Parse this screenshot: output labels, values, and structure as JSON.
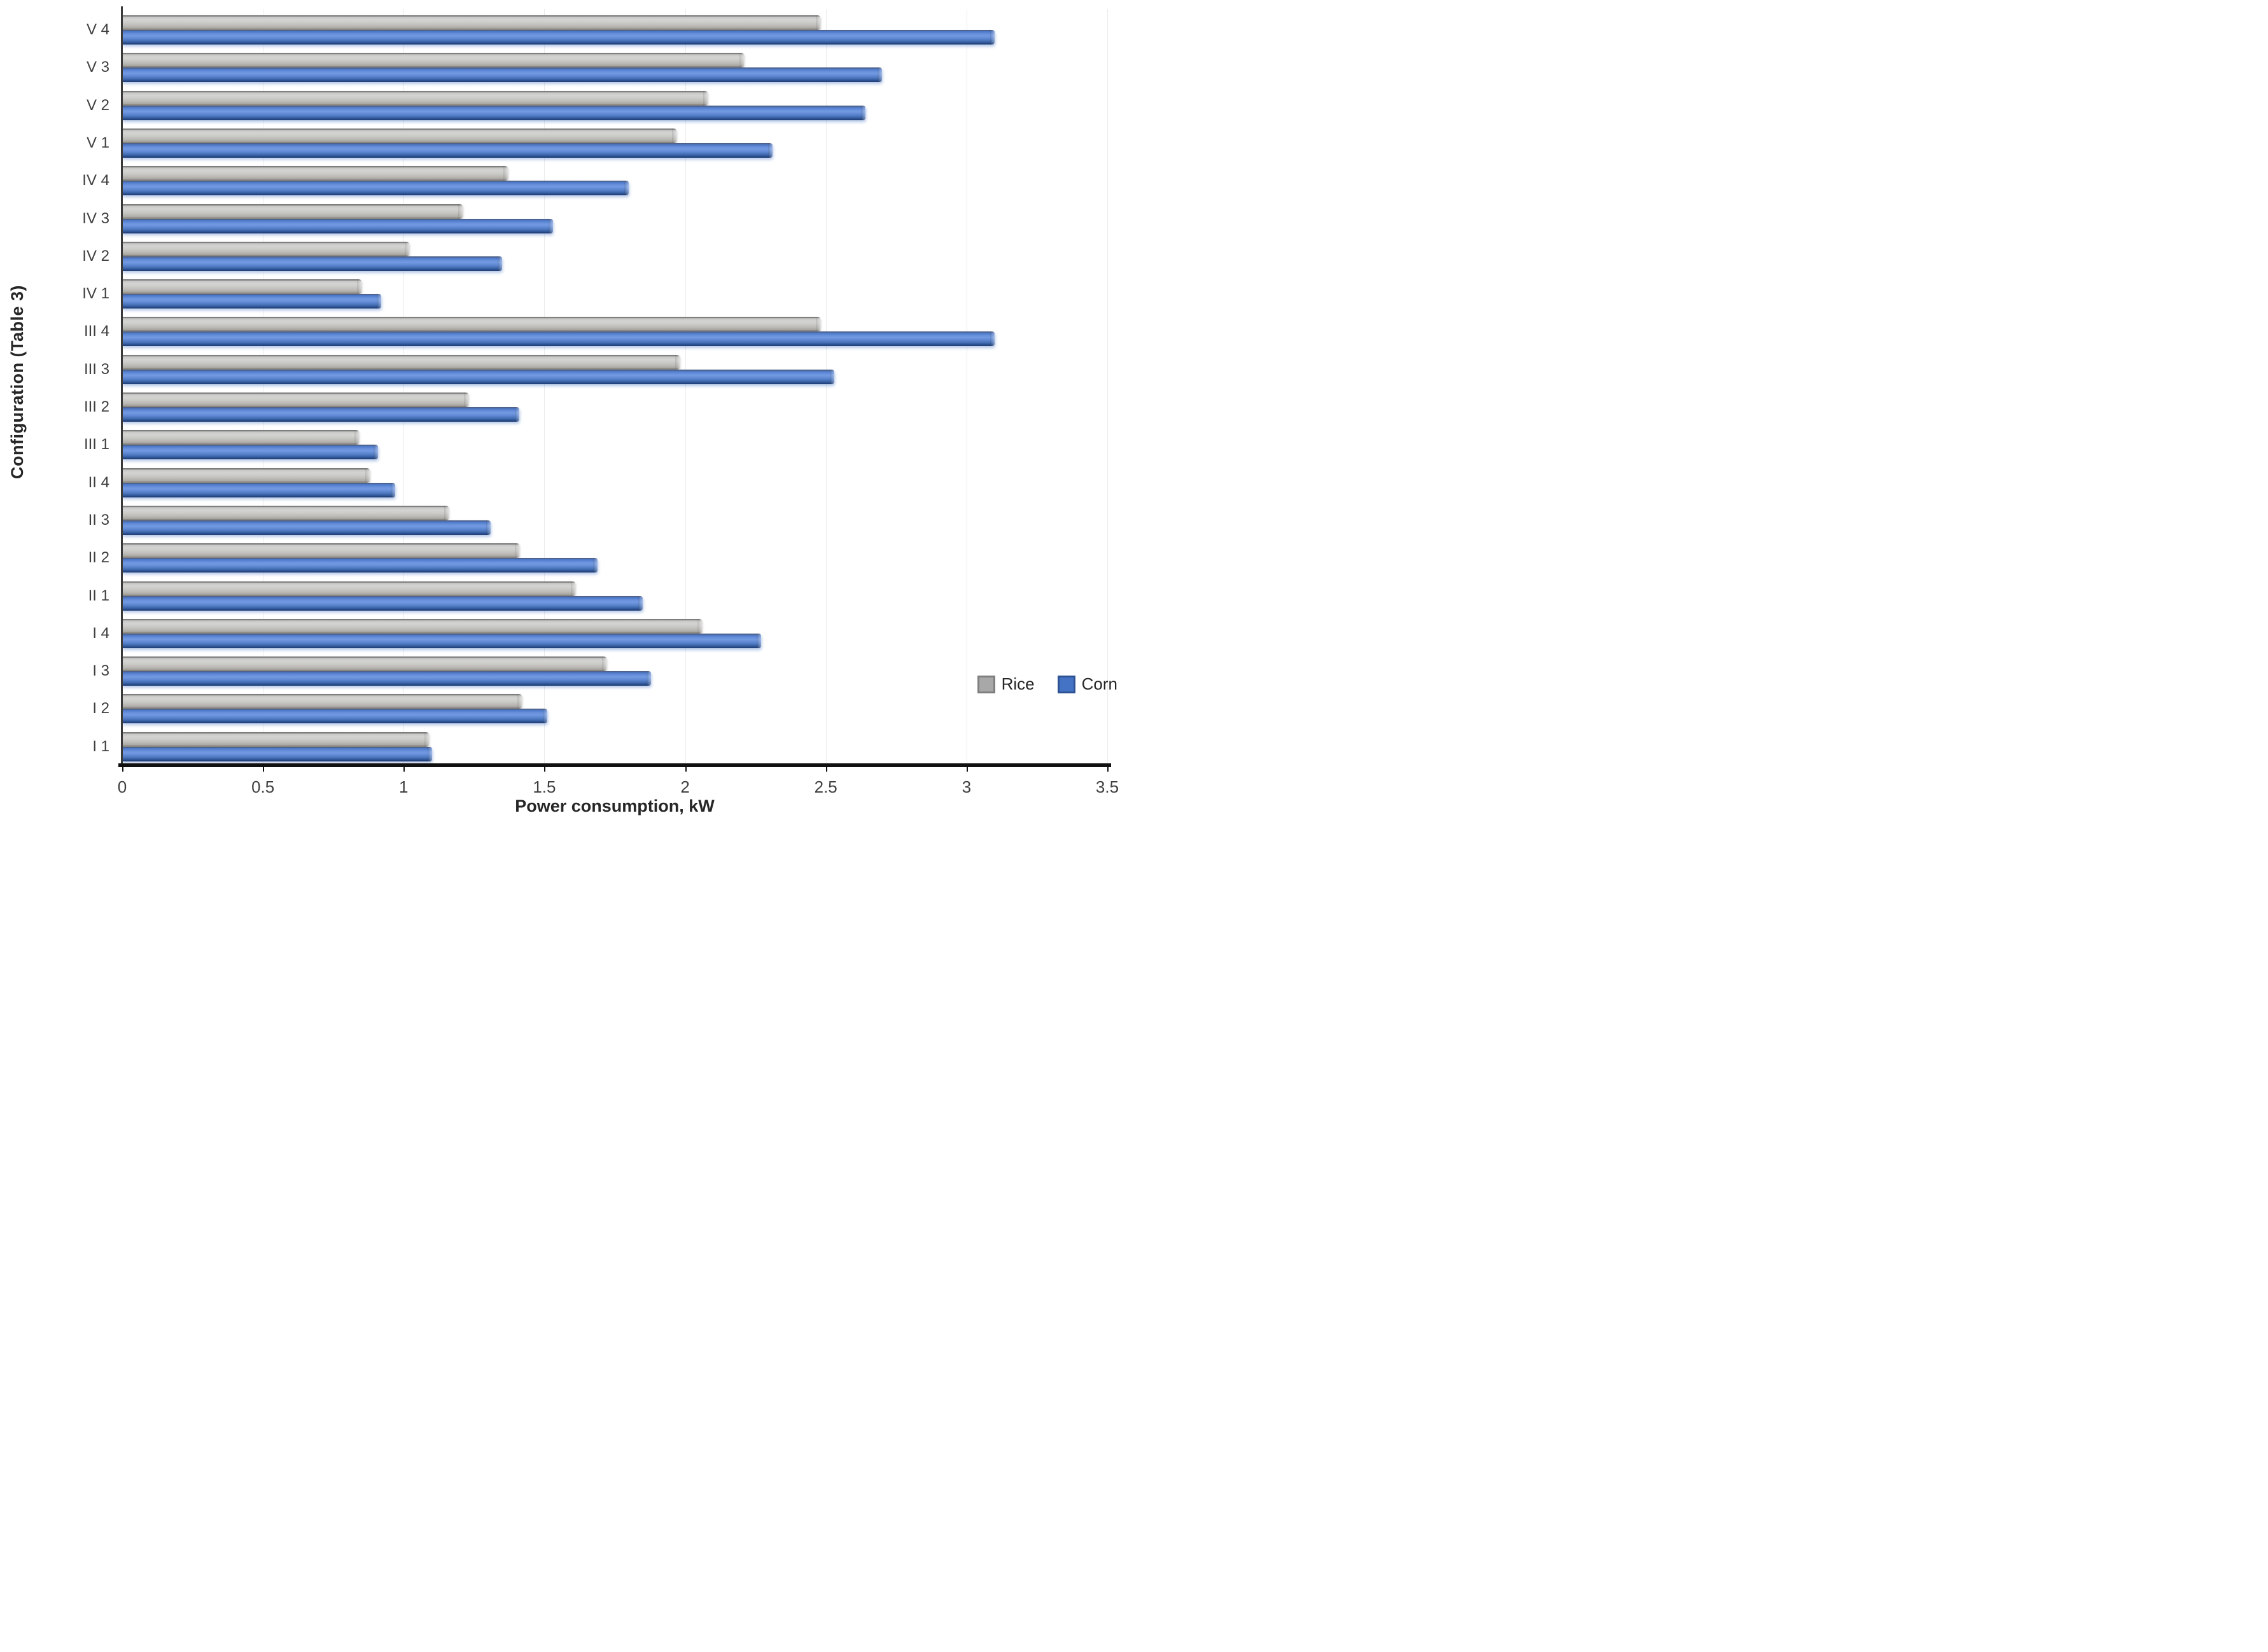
{
  "chart_data": {
    "type": "bar",
    "orientation": "horizontal",
    "title": "",
    "xlabel": "Power consumption, kW",
    "ylabel": "Configuration (Table 3)",
    "xlim": [
      0,
      3.5
    ],
    "xticks": [
      0,
      0.5,
      1,
      1.5,
      2,
      2.5,
      3,
      3.5
    ],
    "grid": true,
    "legend_position": "bottom-right",
    "categories_top_to_bottom": [
      "V 4",
      "V 3",
      "V 2",
      "V 1",
      "IV 4",
      "IV 3",
      "IV 2",
      "IV 1",
      "III 4",
      "III 3",
      "III 2",
      "III 1",
      "II 4",
      "II 3",
      "II 2",
      "II 1",
      "I 4",
      "I 3",
      "I 2",
      "I 1"
    ],
    "series": [
      {
        "name": "Rice",
        "color": "#b8b6b0",
        "border_color": "#7f7f7f",
        "values_top_to_bottom": [
          2.48,
          2.21,
          2.08,
          1.97,
          1.37,
          1.21,
          1.02,
          0.85,
          2.48,
          1.98,
          1.23,
          0.84,
          0.88,
          1.16,
          1.41,
          1.61,
          2.06,
          1.72,
          1.42,
          1.09
        ]
      },
      {
        "name": "Corn",
        "color": "#4472c4",
        "border_color": "#2e5395",
        "values_top_to_bottom": [
          3.1,
          2.7,
          2.64,
          2.31,
          1.8,
          1.53,
          1.35,
          0.92,
          3.1,
          2.53,
          1.41,
          0.91,
          0.97,
          1.31,
          1.69,
          1.85,
          2.27,
          1.88,
          1.51,
          1.1
        ]
      }
    ]
  }
}
